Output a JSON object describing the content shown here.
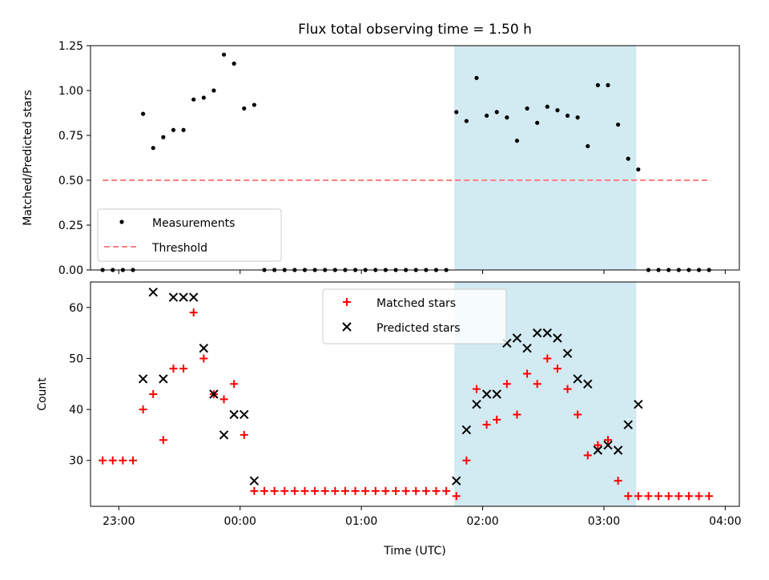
{
  "title": "Flux total observing time = 1.50 h",
  "xlabel": "Time (UTC)",
  "colors": {
    "measurement": "#000000",
    "threshold": "#ff7f7f",
    "matched": "#ff0000",
    "predicted": "#000000",
    "highlight": "#add8e6"
  },
  "chart_data": [
    {
      "type": "scatter",
      "ylabel": "Matched/Predicted stars",
      "ylim": [
        0,
        1.25
      ],
      "yticks": [
        0.0,
        0.25,
        0.5,
        0.75,
        1.0,
        1.25
      ],
      "ytick_labels": [
        "0.00",
        "0.25",
        "0.50",
        "0.75",
        "1.00",
        "1.25"
      ],
      "xlim": [
        "22:46",
        "04:07"
      ],
      "xticks": [
        "23:00",
        "00:00",
        "01:00",
        "02:00",
        "03:00",
        "04:00"
      ],
      "tick_labels_visible": false,
      "highlight_span": [
        "01:46",
        "03:16"
      ],
      "legend": {
        "placement": "lower-left",
        "entries": [
          "Measurements",
          "Threshold"
        ]
      },
      "threshold": {
        "name": "Threshold",
        "value": 0.5,
        "x": [
          "22:52",
          "03:53"
        ]
      },
      "series": [
        {
          "name": "Measurements",
          "points": [
            [
              "22:52",
              0
            ],
            [
              "22:57",
              0
            ],
            [
              "23:02",
              0
            ],
            [
              "23:07",
              0
            ],
            [
              "23:12",
              0.87
            ],
            [
              "23:17",
              0.68
            ],
            [
              "23:22",
              0.74
            ],
            [
              "23:27",
              0.78
            ],
            [
              "23:32",
              0.78
            ],
            [
              "23:37",
              0.95
            ],
            [
              "23:42",
              0.96
            ],
            [
              "23:47",
              1.0
            ],
            [
              "23:52",
              1.2
            ],
            [
              "23:57",
              1.15
            ],
            [
              "00:02",
              0.9
            ],
            [
              "00:07",
              0.92
            ],
            [
              "00:12",
              0
            ],
            [
              "00:17",
              0
            ],
            [
              "00:22",
              0
            ],
            [
              "00:27",
              0
            ],
            [
              "00:32",
              0
            ],
            [
              "00:37",
              0
            ],
            [
              "00:42",
              0
            ],
            [
              "00:47",
              0
            ],
            [
              "00:52",
              0
            ],
            [
              "00:57",
              0
            ],
            [
              "01:02",
              0
            ],
            [
              "01:07",
              0
            ],
            [
              "01:12",
              0
            ],
            [
              "01:17",
              0
            ],
            [
              "01:22",
              0
            ],
            [
              "01:27",
              0
            ],
            [
              "01:32",
              0
            ],
            [
              "01:37",
              0
            ],
            [
              "01:42",
              0
            ],
            [
              "01:47",
              0.88
            ],
            [
              "01:52",
              0.83
            ],
            [
              "01:57",
              1.07
            ],
            [
              "02:02",
              0.86
            ],
            [
              "02:07",
              0.88
            ],
            [
              "02:12",
              0.85
            ],
            [
              "02:17",
              0.72
            ],
            [
              "02:22",
              0.9
            ],
            [
              "02:27",
              0.82
            ],
            [
              "02:32",
              0.91
            ],
            [
              "02:37",
              0.89
            ],
            [
              "02:42",
              0.86
            ],
            [
              "02:47",
              0.85
            ],
            [
              "02:52",
              0.69
            ],
            [
              "02:57",
              1.03
            ],
            [
              "03:02",
              1.03
            ],
            [
              "03:07",
              0.81
            ],
            [
              "03:12",
              0.62
            ],
            [
              "03:17",
              0.56
            ],
            [
              "03:22",
              0
            ],
            [
              "03:27",
              0
            ],
            [
              "03:32",
              0
            ],
            [
              "03:37",
              0
            ],
            [
              "03:42",
              0
            ],
            [
              "03:47",
              0
            ],
            [
              "03:52",
              0
            ]
          ]
        }
      ]
    },
    {
      "type": "scatter",
      "ylabel": "Count",
      "ylim": [
        21,
        65
      ],
      "yticks": [
        30,
        40,
        50,
        60
      ],
      "ytick_labels": [
        "30",
        "40",
        "50",
        "60"
      ],
      "xlim": [
        "22:46",
        "04:07"
      ],
      "xticks": [
        "23:00",
        "00:00",
        "01:00",
        "02:00",
        "03:00",
        "04:00"
      ],
      "xtick_labels": [
        "23:00",
        "00:00",
        "01:00",
        "02:00",
        "03:00",
        "04:00"
      ],
      "highlight_span": [
        "01:46",
        "03:16"
      ],
      "legend": {
        "placement": "upper-center",
        "entries": [
          "Matched stars",
          "Predicted stars"
        ]
      },
      "series": [
        {
          "name": "Matched stars",
          "marker": "+",
          "points": [
            [
              "22:52",
              30
            ],
            [
              "22:57",
              30
            ],
            [
              "23:02",
              30
            ],
            [
              "23:07",
              30
            ],
            [
              "23:12",
              40
            ],
            [
              "23:17",
              43
            ],
            [
              "23:22",
              34
            ],
            [
              "23:27",
              48
            ],
            [
              "23:32",
              48
            ],
            [
              "23:37",
              59
            ],
            [
              "23:42",
              50
            ],
            [
              "23:47",
              43
            ],
            [
              "23:52",
              42
            ],
            [
              "23:57",
              45
            ],
            [
              "00:02",
              35
            ],
            [
              "00:07",
              24
            ],
            [
              "00:12",
              24
            ],
            [
              "00:17",
              24
            ],
            [
              "00:22",
              24
            ],
            [
              "00:27",
              24
            ],
            [
              "00:32",
              24
            ],
            [
              "00:37",
              24
            ],
            [
              "00:42",
              24
            ],
            [
              "00:47",
              24
            ],
            [
              "00:52",
              24
            ],
            [
              "00:57",
              24
            ],
            [
              "01:02",
              24
            ],
            [
              "01:07",
              24
            ],
            [
              "01:12",
              24
            ],
            [
              "01:17",
              24
            ],
            [
              "01:22",
              24
            ],
            [
              "01:27",
              24
            ],
            [
              "01:32",
              24
            ],
            [
              "01:37",
              24
            ],
            [
              "01:42",
              24
            ],
            [
              "01:47",
              23
            ],
            [
              "01:52",
              30
            ],
            [
              "01:57",
              44
            ],
            [
              "02:02",
              37
            ],
            [
              "02:07",
              38
            ],
            [
              "02:12",
              45
            ],
            [
              "02:17",
              39
            ],
            [
              "02:22",
              47
            ],
            [
              "02:27",
              45
            ],
            [
              "02:32",
              50
            ],
            [
              "02:37",
              48
            ],
            [
              "02:42",
              44
            ],
            [
              "02:47",
              39
            ],
            [
              "02:52",
              31
            ],
            [
              "02:57",
              33
            ],
            [
              "03:02",
              34
            ],
            [
              "03:07",
              26
            ],
            [
              "03:12",
              23
            ],
            [
              "03:17",
              23
            ],
            [
              "03:22",
              23
            ],
            [
              "03:27",
              23
            ],
            [
              "03:32",
              23
            ],
            [
              "03:37",
              23
            ],
            [
              "03:42",
              23
            ],
            [
              "03:47",
              23
            ],
            [
              "03:52",
              23
            ]
          ]
        },
        {
          "name": "Predicted stars",
          "marker": "x",
          "points": [
            [
              "23:12",
              46
            ],
            [
              "23:17",
              63
            ],
            [
              "23:22",
              46
            ],
            [
              "23:27",
              62
            ],
            [
              "23:32",
              62
            ],
            [
              "23:37",
              62
            ],
            [
              "23:42",
              52
            ],
            [
              "23:47",
              43
            ],
            [
              "23:52",
              35
            ],
            [
              "23:57",
              39
            ],
            [
              "00:02",
              39
            ],
            [
              "00:07",
              26
            ],
            [
              "01:47",
              26
            ],
            [
              "01:52",
              36
            ],
            [
              "01:57",
              41
            ],
            [
              "02:02",
              43
            ],
            [
              "02:07",
              43
            ],
            [
              "02:12",
              53
            ],
            [
              "02:17",
              54
            ],
            [
              "02:22",
              52
            ],
            [
              "02:27",
              55
            ],
            [
              "02:32",
              55
            ],
            [
              "02:37",
              54
            ],
            [
              "02:42",
              51
            ],
            [
              "02:47",
              46
            ],
            [
              "02:52",
              45
            ],
            [
              "02:57",
              32
            ],
            [
              "03:02",
              33
            ],
            [
              "03:07",
              32
            ],
            [
              "03:12",
              37
            ],
            [
              "03:17",
              41
            ]
          ]
        }
      ]
    }
  ]
}
